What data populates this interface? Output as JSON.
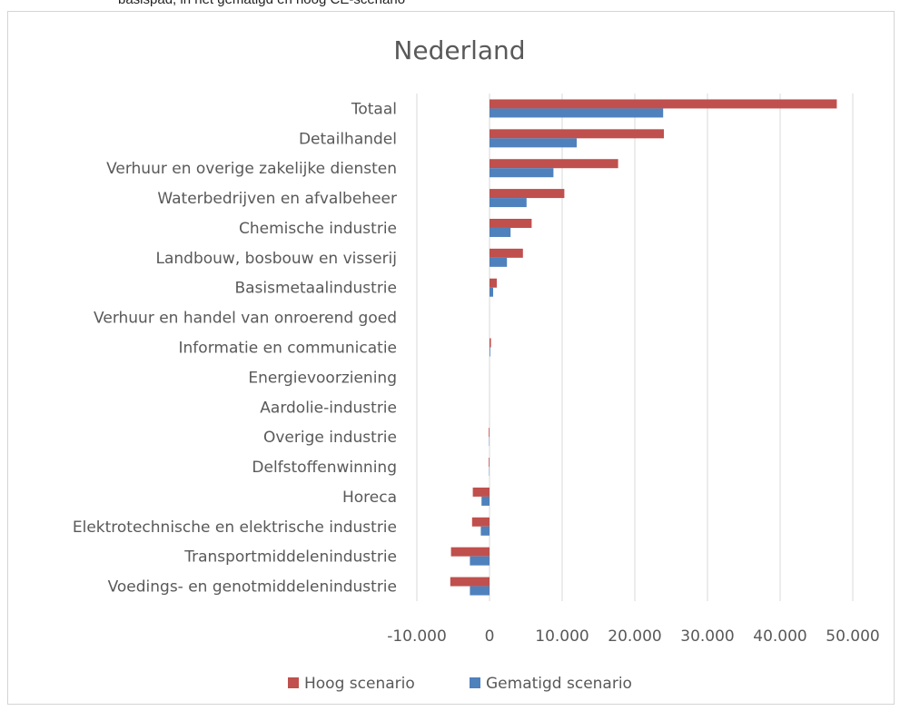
{
  "header_text": "basispad, in het gematigd en hoog CE-scenario",
  "chart_data": {
    "type": "bar",
    "orientation": "horizontal",
    "title": "Nederland",
    "categories": [
      "Totaal",
      "Detailhandel",
      "Verhuur en overige zakelijke diensten",
      "Waterbedrijven en afvalbeheer",
      "Chemische industrie",
      "Landbouw, bosbouw en visserij",
      "Basismetaalindustrie",
      "Verhuur en handel van onroerend goed",
      "Informatie en communicatie",
      "Energievoorziening",
      "Aardolie-industrie",
      "Overige industrie",
      "Delfstoffenwinning",
      "Horeca",
      "Elektrotechnische en elektrische industrie",
      "Transportmiddelenindustrie",
      "Voedings- en genotmiddelenindustrie"
    ],
    "series": [
      {
        "name": "Hoog scenario",
        "color": "#c0504d",
        "values": [
          47800,
          24000,
          17700,
          10300,
          5800,
          4600,
          1000,
          0,
          200,
          0,
          0,
          -100,
          -100,
          -2300,
          -2400,
          -5300,
          -5400
        ]
      },
      {
        "name": "Gematigd scenario",
        "color": "#4f81bd",
        "values": [
          23900,
          12000,
          8800,
          5100,
          2900,
          2400,
          500,
          0,
          100,
          0,
          0,
          -50,
          -50,
          -1100,
          -1200,
          -2700,
          -2700
        ]
      }
    ],
    "xlim": [
      -10000,
      50000
    ],
    "ticks": [
      -10000,
      0,
      10000,
      20000,
      30000,
      40000,
      50000
    ],
    "tick_labels": [
      "-10.000",
      "0",
      "10.000",
      "20.000",
      "30.000",
      "40.000",
      "50.000"
    ],
    "grid": true,
    "legend": "bottom"
  }
}
